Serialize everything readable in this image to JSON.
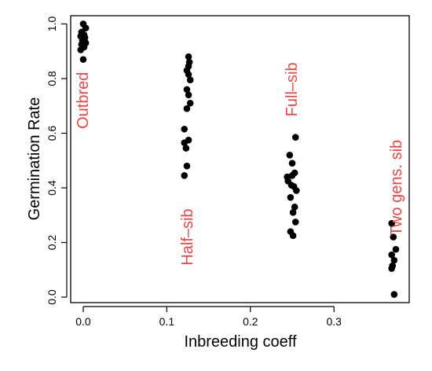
{
  "chart_data": {
    "type": "scatter",
    "xlabel": "Inbreeding coeff",
    "ylabel": "Germination Rate",
    "xlim": [
      -0.015,
      0.39
    ],
    "ylim": [
      -0.02,
      1.03
    ],
    "xticks": [
      0.0,
      0.1,
      0.2,
      0.3
    ],
    "xtick_labels": [
      "0.0",
      "0.1",
      "0.2",
      "0.3"
    ],
    "yticks": [
      0.0,
      0.2,
      0.4,
      0.6,
      0.8,
      1.0
    ],
    "ytick_labels": [
      "0.0",
      "0.2",
      "0.4",
      "0.6",
      "0.8",
      "1.0"
    ],
    "grid": false,
    "point_color": "#000000",
    "annotation_color": "#f04545",
    "annotations": [
      {
        "text": "Outbred",
        "x": 0.0,
        "y": 0.72
      },
      {
        "text": "Half–sib",
        "x": 0.125,
        "y": 0.22
      },
      {
        "text": "Full–sib",
        "x": 0.25,
        "y": 0.76
      },
      {
        "text": "Two gens. sib",
        "x": 0.375,
        "y": 0.4
      }
    ],
    "series": [
      {
        "x": [
          0.0,
          0.003,
          -0.002,
          0.001,
          -0.003,
          0.002,
          0.0,
          -0.001,
          0.002,
          0.003,
          -0.002,
          0.001,
          -0.003,
          0.0
        ],
        "y": [
          1.0,
          0.985,
          0.97,
          0.96,
          0.955,
          0.95,
          0.945,
          0.94,
          0.935,
          0.93,
          0.925,
          0.915,
          0.905,
          0.87
        ]
      },
      {
        "x": [
          0.126,
          0.127,
          0.126,
          0.124,
          0.126,
          0.128,
          0.124,
          0.126,
          0.128,
          0.124,
          0.121,
          0.126,
          0.121,
          0.123,
          0.124,
          0.121
        ],
        "y": [
          0.88,
          0.86,
          0.845,
          0.83,
          0.815,
          0.795,
          0.76,
          0.74,
          0.71,
          0.69,
          0.615,
          0.575,
          0.565,
          0.545,
          0.48,
          0.445
        ]
      },
      {
        "x": [
          0.254,
          0.247,
          0.25,
          0.253,
          0.25,
          0.244,
          0.245,
          0.249,
          0.252,
          0.255,
          0.248,
          0.253,
          0.251,
          0.254,
          0.248,
          0.251
        ],
        "y": [
          0.585,
          0.52,
          0.49,
          0.455,
          0.445,
          0.44,
          0.425,
          0.41,
          0.405,
          0.39,
          0.365,
          0.33,
          0.31,
          0.275,
          0.24,
          0.225
        ]
      },
      {
        "x": [
          0.369,
          0.371,
          0.374,
          0.369,
          0.372,
          0.37,
          0.369,
          0.372
        ],
        "y": [
          0.27,
          0.22,
          0.175,
          0.155,
          0.135,
          0.115,
          0.105,
          0.01
        ]
      }
    ]
  }
}
